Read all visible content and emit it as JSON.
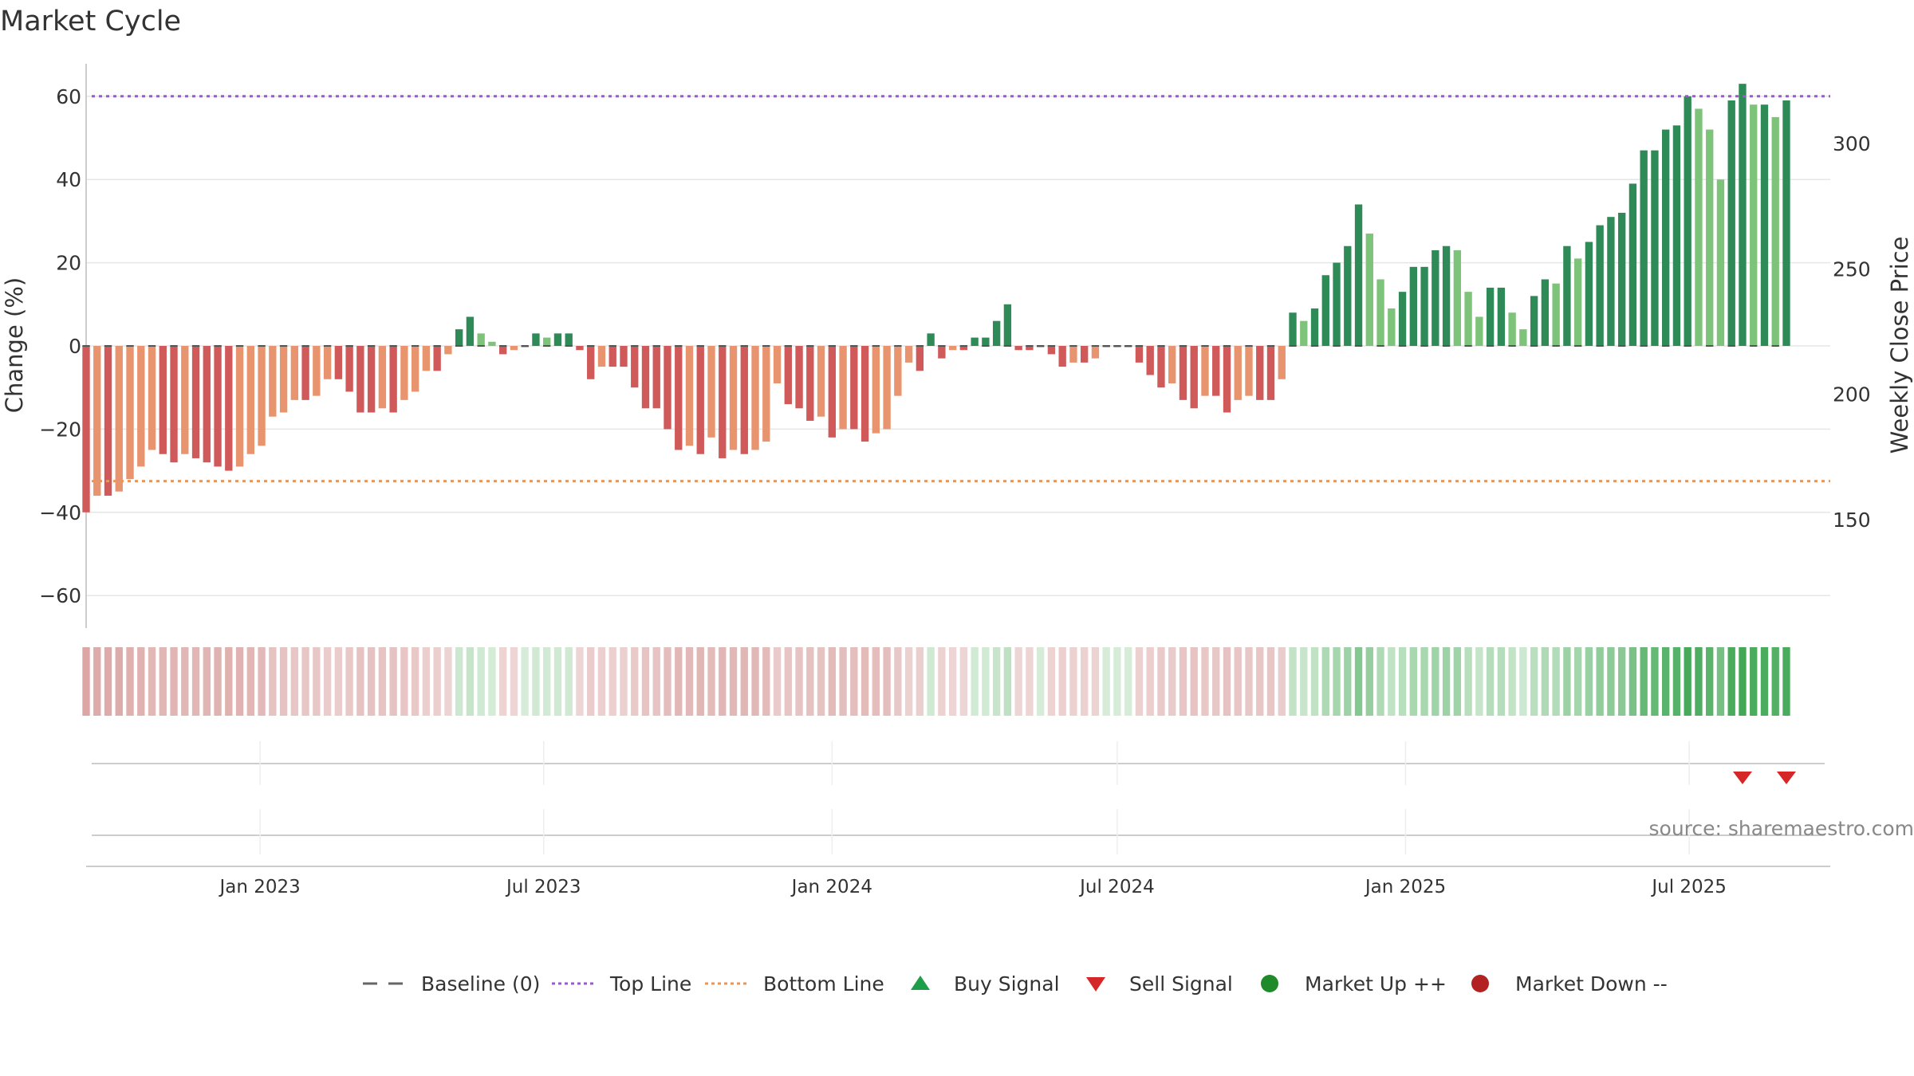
{
  "chart_data": {
    "type": "bar",
    "title": "Market Cycle",
    "ylabel": "Change (%)",
    "y2label": "Weekly Close Price",
    "ylim": [
      -68,
      68
    ],
    "yticks": [
      -60,
      -40,
      -20,
      0,
      20,
      40,
      60
    ],
    "y2ticks": [
      150,
      200,
      250,
      300
    ],
    "x_start": "2022-09-12",
    "x_end": "2025-09-29",
    "x_tick_labels": [
      {
        "date": "2023-01-01",
        "label": "Jan 2023"
      },
      {
        "date": "2023-07-01",
        "label": "Jul 2023"
      },
      {
        "date": "2024-01-01",
        "label": "Jan 2024"
      },
      {
        "date": "2024-07-01",
        "label": "Jul 2024"
      },
      {
        "date": "2025-01-01",
        "label": "Jan 2025"
      },
      {
        "date": "2025-07-01",
        "label": "Jul 2025"
      }
    ],
    "first_week": "2022-09-12",
    "values": [
      -40,
      -36,
      -36,
      -35,
      -32,
      -29,
      -25,
      -26,
      -28,
      -26,
      -27,
      -28,
      -29,
      -30,
      -29,
      -26,
      -24,
      -17,
      -16,
      -13,
      -13,
      -12,
      -8,
      -8,
      -11,
      -16,
      -16,
      -15,
      -16,
      -13,
      -11,
      -6,
      -6,
      -2,
      4,
      7,
      3,
      1,
      -2,
      -1,
      0,
      3,
      2,
      3,
      3,
      -1,
      -8,
      -5,
      -5,
      -5,
      -10,
      -15,
      -15,
      -20,
      -25,
      -24,
      -26,
      -22,
      -27,
      -25,
      -26,
      -25,
      -23,
      -9,
      -14,
      -15,
      -18,
      -17,
      -22,
      -20,
      -20,
      -23,
      -21,
      -20,
      -12,
      -4,
      -6,
      3,
      -3,
      -1,
      -1,
      2,
      2,
      6,
      10,
      -1,
      -1,
      0,
      -2,
      -5,
      -4,
      -4,
      -3,
      0,
      0,
      0,
      -4,
      -7,
      -10,
      -9,
      -13,
      -15,
      -12,
      -12,
      -16,
      -13,
      -12,
      -13,
      -13,
      -8,
      8,
      6,
      9,
      17,
      20,
      24,
      34,
      27,
      16,
      9,
      13,
      19,
      19,
      23,
      24,
      23,
      13,
      7,
      14,
      14,
      8,
      4,
      12,
      16,
      15,
      24,
      21,
      25,
      29,
      31,
      32,
      39,
      47,
      47,
      52,
      53,
      60,
      57,
      52,
      40,
      59,
      63,
      58,
      58,
      55,
      59
    ],
    "top_line": 60,
    "bottom_line": -32.5,
    "sell_signals": [
      "2025-08-04",
      "2025-09-01"
    ],
    "source": "source: sharemaestro.com",
    "legend_position": "bottom",
    "legend": [
      {
        "label": "Baseline (0)",
        "symbol": "dash",
        "color": "#666666"
      },
      {
        "label": "Top Line",
        "symbol": "dotted",
        "color": "#9b59d0"
      },
      {
        "label": "Bottom Line",
        "symbol": "dotted",
        "color": "#e8965a"
      },
      {
        "label": "Buy Signal",
        "symbol": "triangle-up",
        "color": "#1e9e48"
      },
      {
        "label": "Sell Signal",
        "symbol": "triangle-down",
        "color": "#d62728"
      },
      {
        "label": "Market Up ++",
        "symbol": "circle",
        "color": "#1f8a2a"
      },
      {
        "label": "Market Down --",
        "symbol": "circle",
        "color": "#b22222"
      }
    ],
    "colors": {
      "up_strong": "#2e8b57",
      "up_light": "#7dc47a",
      "down_strong": "#d0595a",
      "down_light": "#e8946e",
      "top_line": "#9b59d0",
      "bottom_line": "#e8965a",
      "sell": "#d62728"
    }
  }
}
